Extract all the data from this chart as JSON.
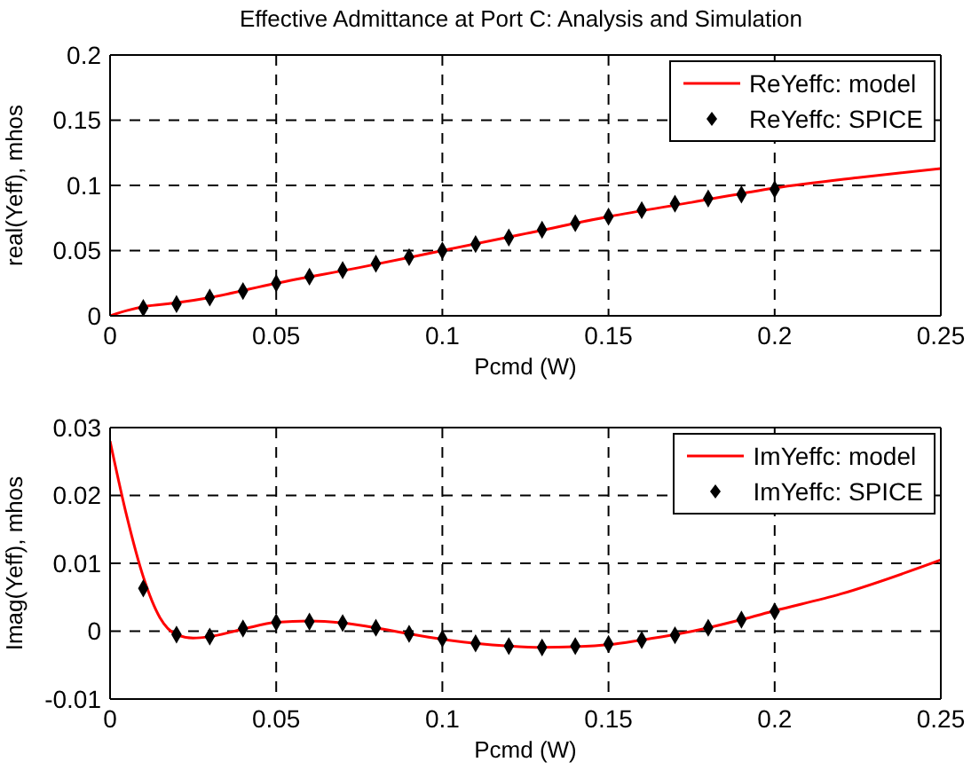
{
  "chart_data": [
    {
      "type": "line",
      "title": "Effective Admittance at Port C: Analysis and Simulation",
      "xlabel": "Pcmd (W)",
      "ylabel": "real(Yeff), mhos",
      "xlim": [
        0,
        0.25
      ],
      "xticks": [
        0,
        0.05,
        0.1,
        0.15,
        0.2,
        0.25
      ],
      "ylim": [
        0,
        0.2
      ],
      "yticks": [
        0,
        0.05,
        0.1,
        0.15,
        0.2
      ],
      "grid": true,
      "legend": "top right",
      "series": [
        {
          "name": "ReYeffc: model",
          "type": "line",
          "color": "#ff0000",
          "line_style": "solid",
          "x": [
            0,
            0.005,
            0.01,
            0.02,
            0.03,
            0.05,
            0.075,
            0.1,
            0.125,
            0.15,
            0.175,
            0.2,
            0.225,
            0.25
          ],
          "values": [
            0,
            0.004,
            0.007,
            0.01,
            0.014,
            0.025,
            0.037,
            0.05,
            0.063,
            0.076,
            0.087,
            0.098,
            0.106,
            0.113
          ]
        },
        {
          "name": "ReYeffc: SPICE",
          "type": "scatter",
          "color": "#000000",
          "marker": "diamond",
          "x": [
            0.01,
            0.02,
            0.03,
            0.04,
            0.05,
            0.06,
            0.07,
            0.08,
            0.09,
            0.1,
            0.11,
            0.12,
            0.13,
            0.14,
            0.15,
            0.16,
            0.17,
            0.18,
            0.19,
            0.2
          ],
          "values": [
            0.006,
            0.009,
            0.014,
            0.019,
            0.025,
            0.03,
            0.035,
            0.04,
            0.045,
            0.05,
            0.055,
            0.06,
            0.066,
            0.071,
            0.076,
            0.081,
            0.086,
            0.09,
            0.093,
            0.097
          ]
        }
      ]
    },
    {
      "type": "line",
      "xlabel": "Pcmd (W)",
      "ylabel": "Imag(Yeff), mhos",
      "xlim": [
        0,
        0.25
      ],
      "xticks": [
        0,
        0.05,
        0.1,
        0.15,
        0.2,
        0.25
      ],
      "ylim": [
        -0.01,
        0.03
      ],
      "yticks": [
        -0.01,
        0,
        0.01,
        0.02,
        0.03
      ],
      "grid": true,
      "legend": "top right",
      "series": [
        {
          "name": "ImYeffc: model",
          "type": "line",
          "color": "#ff0000",
          "line_style": "solid",
          "x": [
            0,
            0.005,
            0.01,
            0.015,
            0.02,
            0.025,
            0.03,
            0.04,
            0.05,
            0.06,
            0.07,
            0.08,
            0.09,
            0.1,
            0.11,
            0.12,
            0.13,
            0.14,
            0.15,
            0.16,
            0.17,
            0.18,
            0.19,
            0.2,
            0.22,
            0.25
          ],
          "values": [
            0.028,
            0.017,
            0.008,
            0.002,
            -0.0005,
            -0.001,
            -0.0008,
            0.0003,
            0.0013,
            0.0015,
            0.0012,
            0.0005,
            -0.0004,
            -0.0012,
            -0.0018,
            -0.0022,
            -0.0024,
            -0.0023,
            -0.002,
            -0.0013,
            -0.0005,
            0.0005,
            0.0017,
            0.003,
            0.0055,
            0.0105
          ]
        },
        {
          "name": "ImYeffc: SPICE",
          "type": "scatter",
          "color": "#000000",
          "marker": "diamond",
          "x": [
            0.01,
            0.02,
            0.03,
            0.04,
            0.05,
            0.06,
            0.07,
            0.08,
            0.09,
            0.1,
            0.11,
            0.12,
            0.13,
            0.14,
            0.15,
            0.16,
            0.17,
            0.18,
            0.19,
            0.2
          ],
          "values": [
            0.0063,
            -0.0005,
            -0.0008,
            0.0004,
            0.0013,
            0.0014,
            0.0012,
            0.0005,
            -0.0004,
            -0.0011,
            -0.0018,
            -0.0022,
            -0.0024,
            -0.0022,
            -0.0019,
            -0.0013,
            -0.0006,
            0.0005,
            0.0017,
            0.0029
          ]
        }
      ]
    }
  ]
}
